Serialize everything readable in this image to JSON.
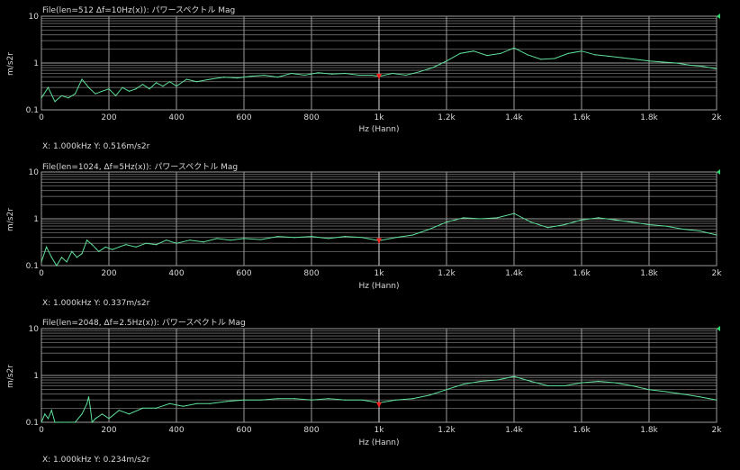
{
  "colors": {
    "background": "#000000",
    "plot_bg": "#000000",
    "grid_major": "#9c9c9c",
    "grid_minor": "#6e6e6e",
    "axis_text": "#d8d8d8",
    "trace": "#5fe09a",
    "cursor_line": "#b8b8b8",
    "cursor_marker": "#ff2020",
    "marker_flag": "#2fd56a"
  },
  "panels": [
    {
      "title": "File(len=512  Δf=10Hz(x)): パワースペクトル Mag",
      "ylabel": "m/s2r",
      "xlabel": "Hz (Hann)",
      "cursor_readout": "X: 1.000kHz Y: 0.516m/s2r",
      "cursor_x_hz": 1000,
      "cursor_y": 0.516
    },
    {
      "title": "File(len=1024,  Δf=5Hz(x)): パワースペクトル Mag",
      "ylabel": "m/s2r",
      "xlabel": "Hz (Hann)",
      "cursor_readout": "X: 1.000kHz Y: 0.337m/s2r",
      "cursor_x_hz": 1000,
      "cursor_y": 0.337
    },
    {
      "title": "File(len=2048,  Δf=2.5Hz(x)): パワースペクトル Mag",
      "ylabel": "m/s2r",
      "xlabel": "Hz (Hann)",
      "cursor_readout": "X: 1.000kHz Y: 0.234m/s2r",
      "cursor_x_hz": 1000,
      "cursor_y": 0.234
    }
  ],
  "chart_data": [
    {
      "type": "line",
      "title": "File(len=512  Δf=10Hz(x)): パワースペクトル Mag",
      "xlabel": "Hz (Hann)",
      "ylabel": "m/s2r",
      "xlim": [
        0,
        2000
      ],
      "ylim": [
        0.1,
        10
      ],
      "yscale": "log",
      "grid": true,
      "x_tick_labels": [
        "0",
        "200",
        "400",
        "600",
        "800",
        "1k",
        "1.2k",
        "1.4k",
        "1.6k",
        "1.8k",
        "2k"
      ],
      "y_tick_labels": [
        "10",
        "1",
        "0.1"
      ],
      "x_ticks": [
        0,
        200,
        400,
        600,
        800,
        1000,
        1200,
        1400,
        1600,
        1800,
        2000
      ],
      "y_ticks": [
        10,
        1,
        0.1
      ],
      "series": [
        {
          "x": [
            0,
            20,
            40,
            60,
            80,
            100,
            120,
            140,
            160,
            180,
            200,
            220,
            240,
            260,
            280,
            300,
            320,
            340,
            360,
            380,
            400,
            430,
            460,
            500,
            540,
            580,
            620,
            660,
            700,
            740,
            780,
            820,
            860,
            900,
            940,
            980,
            1000,
            1040,
            1080,
            1120,
            1160,
            1200,
            1240,
            1280,
            1320,
            1360,
            1400,
            1440,
            1480,
            1520,
            1560,
            1600,
            1640,
            1680,
            1720,
            1760,
            1800,
            1840,
            1880,
            1920,
            1960,
            2000
          ],
          "y": [
            0.18,
            0.3,
            0.15,
            0.2,
            0.18,
            0.22,
            0.45,
            0.3,
            0.22,
            0.25,
            0.28,
            0.2,
            0.3,
            0.25,
            0.28,
            0.35,
            0.28,
            0.38,
            0.32,
            0.4,
            0.32,
            0.45,
            0.4,
            0.45,
            0.5,
            0.48,
            0.52,
            0.55,
            0.5,
            0.6,
            0.55,
            0.62,
            0.58,
            0.6,
            0.55,
            0.55,
            0.52,
            0.6,
            0.55,
            0.65,
            0.8,
            1.1,
            1.6,
            1.8,
            1.45,
            1.6,
            2.1,
            1.5,
            1.2,
            1.25,
            1.6,
            1.8,
            1.5,
            1.4,
            1.3,
            1.2,
            1.1,
            1.05,
            1.0,
            0.9,
            0.85,
            0.75
          ]
        }
      ]
    },
    {
      "type": "line",
      "title": "File(len=1024,  Δf=5Hz(x)): パワースペクトル Mag",
      "xlabel": "Hz (Hann)",
      "ylabel": "m/s2r",
      "xlim": [
        0,
        2000
      ],
      "ylim": [
        0.1,
        10
      ],
      "yscale": "log",
      "grid": true,
      "x_tick_labels": [
        "0",
        "200",
        "400",
        "600",
        "800",
        "1k",
        "1.2k",
        "1.4k",
        "1.6k",
        "1.8k",
        "2k"
      ],
      "y_tick_labels": [
        "10",
        "1",
        "0.1"
      ],
      "x_ticks": [
        0,
        200,
        400,
        600,
        800,
        1000,
        1200,
        1400,
        1600,
        1800,
        2000
      ],
      "y_ticks": [
        10,
        1,
        0.1
      ],
      "series": [
        {
          "x": [
            0,
            15,
            30,
            45,
            60,
            75,
            90,
            105,
            120,
            135,
            150,
            170,
            190,
            210,
            230,
            250,
            280,
            310,
            340,
            370,
            400,
            440,
            480,
            520,
            560,
            600,
            650,
            700,
            750,
            800,
            850,
            900,
            950,
            1000,
            1050,
            1100,
            1150,
            1200,
            1250,
            1300,
            1350,
            1400,
            1450,
            1500,
            1550,
            1600,
            1650,
            1700,
            1750,
            1800,
            1850,
            1900,
            1950,
            2000
          ],
          "y": [
            0.12,
            0.25,
            0.15,
            0.1,
            0.15,
            0.12,
            0.2,
            0.15,
            0.18,
            0.35,
            0.28,
            0.2,
            0.25,
            0.22,
            0.25,
            0.28,
            0.25,
            0.3,
            0.28,
            0.35,
            0.3,
            0.35,
            0.32,
            0.38,
            0.35,
            0.38,
            0.36,
            0.42,
            0.4,
            0.42,
            0.38,
            0.42,
            0.4,
            0.34,
            0.4,
            0.45,
            0.6,
            0.85,
            1.05,
            1.0,
            1.05,
            1.3,
            0.85,
            0.65,
            0.75,
            0.95,
            1.05,
            0.95,
            0.85,
            0.75,
            0.7,
            0.6,
            0.55,
            0.45
          ]
        }
      ]
    },
    {
      "type": "line",
      "title": "File(len=2048,  Δf=2.5Hz(x)): パワースペクトル Mag",
      "xlabel": "Hz (Hann)",
      "ylabel": "m/s2r",
      "xlim": [
        0,
        2000
      ],
      "ylim": [
        0.1,
        10
      ],
      "yscale": "log",
      "grid": true,
      "x_tick_labels": [
        "0",
        "200",
        "400",
        "600",
        "800",
        "1k",
        "1.2k",
        "1.4k",
        "1.6k",
        "1.8k",
        "2k"
      ],
      "y_tick_labels": [
        "10",
        "1",
        "0.1"
      ],
      "x_ticks": [
        0,
        200,
        400,
        600,
        800,
        1000,
        1200,
        1400,
        1600,
        1800,
        2000
      ],
      "y_ticks": [
        10,
        1,
        0.1
      ],
      "series": [
        {
          "x": [
            0,
            10,
            20,
            30,
            40,
            50,
            60,
            80,
            100,
            120,
            135,
            140,
            145,
            150,
            160,
            180,
            200,
            230,
            260,
            300,
            340,
            380,
            420,
            460,
            500,
            550,
            600,
            650,
            700,
            750,
            800,
            850,
            900,
            950,
            1000,
            1050,
            1100,
            1150,
            1200,
            1250,
            1300,
            1350,
            1400,
            1450,
            1500,
            1550,
            1600,
            1650,
            1700,
            1750,
            1800,
            1850,
            1900,
            1950,
            2000
          ],
          "y": [
            0.1,
            0.15,
            0.12,
            0.18,
            0.1,
            0.1,
            0.1,
            0.1,
            0.1,
            0.15,
            0.25,
            0.35,
            0.2,
            0.1,
            0.12,
            0.15,
            0.12,
            0.18,
            0.15,
            0.2,
            0.2,
            0.25,
            0.22,
            0.25,
            0.25,
            0.28,
            0.3,
            0.3,
            0.32,
            0.32,
            0.3,
            0.32,
            0.3,
            0.3,
            0.26,
            0.3,
            0.32,
            0.38,
            0.5,
            0.65,
            0.75,
            0.8,
            0.95,
            0.75,
            0.6,
            0.6,
            0.7,
            0.75,
            0.7,
            0.6,
            0.5,
            0.45,
            0.4,
            0.35,
            0.3
          ]
        }
      ]
    }
  ]
}
